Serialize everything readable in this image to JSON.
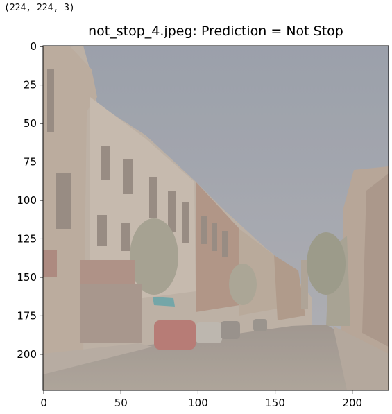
{
  "output": {
    "shape_text": "(224, 224, 3)"
  },
  "figure": {
    "title": "not_stop_4.jpeg: Prediction = Not Stop",
    "image_description_colors": {
      "sky": "#9ba1ae",
      "buildings": "#b7a99c",
      "street": "#9a9189",
      "brick": "#a98a78",
      "car": "#b06b66",
      "awning": "#5e9ea3"
    },
    "x_ticks": [
      "0",
      "50",
      "100",
      "150",
      "200"
    ],
    "y_ticks": [
      "0",
      "25",
      "50",
      "75",
      "100",
      "125",
      "150",
      "175",
      "200"
    ],
    "x_tick_values": [
      0,
      50,
      100,
      150,
      200
    ],
    "y_tick_values": [
      0,
      25,
      50,
      75,
      100,
      125,
      150,
      175,
      200
    ],
    "image_size": [
      224,
      224
    ]
  }
}
